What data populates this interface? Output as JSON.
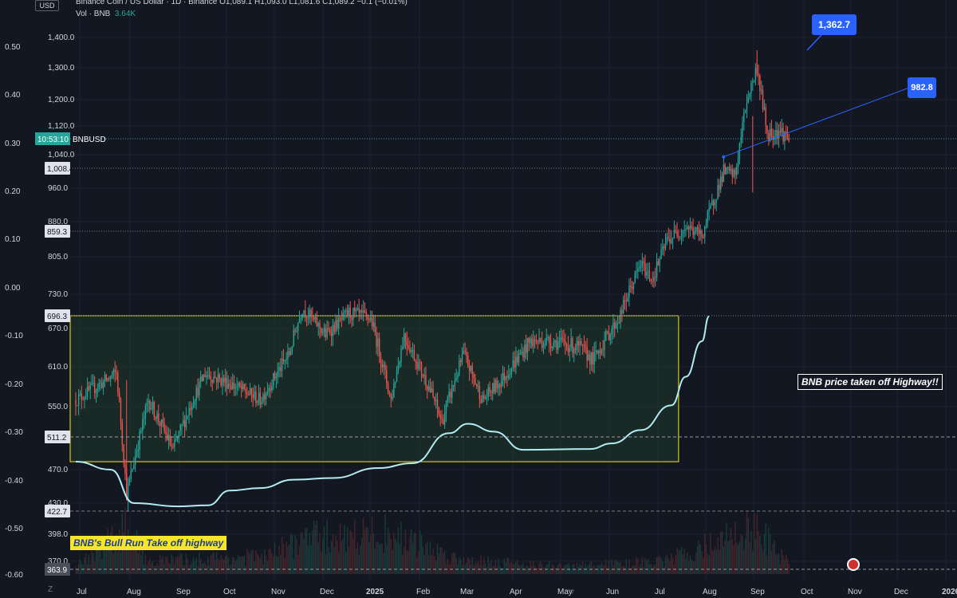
{
  "header": {
    "line1": "Binance Coin / US Dollar · 1D · Binance  O1,089.1  H1,093.0  L1,081.6  C1,089.2  −0.1 (−0.01%)",
    "vol_label": "Vol · BNB",
    "vol_value": "3.64K",
    "usd_button": "USD"
  },
  "z_button": "Z",
  "colors": {
    "background": "#131722",
    "up": "#26a69a",
    "down": "#ef5350",
    "box_fill": "#1f3a2a",
    "box_stroke": "#f7e52c",
    "ma_line": "#b2ebf2",
    "trendline": "#2962ff"
  },
  "annotations": {
    "highway_box_label": "BNB price taken off Highway!!",
    "highway_banner": "BNB's Bull Run Take off highway",
    "peak_callout": "1,362.7",
    "trend_callout": "982.8"
  },
  "chart_data": {
    "type": "candlestick",
    "symbol": "BNBUSD",
    "price_axis_ticks": [
      1400.0,
      1300.0,
      1200.0,
      1120.0,
      1040.0,
      960.0,
      880.0,
      805.0,
      730.0,
      670.0,
      610.0,
      550.0,
      470.0,
      430.0,
      398.0,
      370.0
    ],
    "price_axis_tick_labels": [
      "1,400.0",
      "1,300.0",
      "1,200.0",
      "1,120.0",
      "1,040.0",
      "960.0",
      "880.0",
      "805.0",
      "730.0",
      "670.0",
      "610.0",
      "550.0",
      "470.0",
      "430.0",
      "398.0",
      "370.0"
    ],
    "left_axis_ticks": [
      "0.50",
      "0.40",
      "0.30",
      "0.20",
      "0.10",
      "0.00",
      "-0.10",
      "-0.20",
      "-0.30",
      "-0.40",
      "-0.50",
      "-0.60"
    ],
    "x_axis_labels": [
      "Jul",
      "Aug",
      "Sep",
      "Oct",
      "Nov",
      "Dec",
      "2025",
      "Feb",
      "Mar",
      "Apr",
      "May",
      "Jun",
      "Jul",
      "Aug",
      "Sep",
      "Oct",
      "Nov",
      "Dec",
      "2026"
    ],
    "price_labels": [
      {
        "value": 1089.2,
        "text": "10:53:10",
        "tag": "BNBUSD"
      },
      {
        "value": 1008.4,
        "text": "1,008.4"
      },
      {
        "value": 859.3,
        "text": "859.3"
      },
      {
        "value": 696.3,
        "text": "696.3"
      },
      {
        "value": 511.2,
        "text": "511.2"
      },
      {
        "value": 422.7,
        "text": "422.7"
      },
      {
        "value": 363.9,
        "text": "363.9"
      }
    ],
    "range_box": {
      "top": 696.3,
      "bottom": 480.0,
      "start": "2024-07-01",
      "end": "2025-08-20",
      "label": "BNB's Bull Run Take off highway"
    },
    "peak": {
      "date": "2025-10-13",
      "value": 1362.7
    },
    "trendline": {
      "start": "2025-09-20",
      "start_value": 1035,
      "end": "2025-11-25",
      "end_value": 1195,
      "label": "982.8"
    },
    "price_keypoints": [
      [
        "2024-07-01",
        560
      ],
      [
        "2024-07-15",
        580
      ],
      [
        "2024-07-29",
        600
      ],
      [
        "2024-08-05",
        440
      ],
      [
        "2024-08-20",
        560
      ],
      [
        "2024-09-06",
        495
      ],
      [
        "2024-09-28",
        600
      ],
      [
        "2024-10-15",
        585
      ],
      [
        "2024-11-05",
        560
      ],
      [
        "2024-11-25",
        630
      ],
      [
        "2024-12-04",
        710
      ],
      [
        "2024-12-20",
        660
      ],
      [
        "2025-01-05",
        700
      ],
      [
        "2025-01-20",
        690
      ],
      [
        "2025-02-03",
        560
      ],
      [
        "2025-02-12",
        660
      ],
      [
        "2025-03-01",
        580
      ],
      [
        "2025-03-10",
        530
      ],
      [
        "2025-03-25",
        630
      ],
      [
        "2025-04-07",
        560
      ],
      [
        "2025-04-20",
        590
      ],
      [
        "2025-05-10",
        650
      ],
      [
        "2025-05-25",
        650
      ],
      [
        "2025-06-13",
        640
      ],
      [
        "2025-06-22",
        620
      ],
      [
        "2025-07-10",
        690
      ],
      [
        "2025-07-25",
        790
      ],
      [
        "2025-08-02",
        760
      ],
      [
        "2025-08-12",
        840
      ],
      [
        "2025-08-25",
        870
      ],
      [
        "2025-09-05",
        850
      ],
      [
        "2025-09-20",
        1000
      ],
      [
        "2025-09-28",
        990
      ],
      [
        "2025-10-06",
        1200
      ],
      [
        "2025-10-13",
        1300
      ],
      [
        "2025-10-20",
        1100
      ],
      [
        "2025-10-28",
        1110
      ],
      [
        "2025-11-04",
        1089
      ]
    ],
    "ma_keypoints": [
      [
        "2024-07-01",
        480
      ],
      [
        "2024-07-25",
        470
      ],
      [
        "2024-08-10",
        430
      ],
      [
        "2024-09-10",
        427
      ],
      [
        "2024-09-30",
        428
      ],
      [
        "2024-10-15",
        445
      ],
      [
        "2024-11-05",
        448
      ],
      [
        "2024-11-28",
        458
      ],
      [
        "2024-12-25",
        460
      ],
      [
        "2025-01-25",
        472
      ],
      [
        "2025-02-18",
        478
      ],
      [
        "2025-03-15",
        516
      ],
      [
        "2025-03-28",
        528
      ],
      [
        "2025-04-15",
        518
      ],
      [
        "2025-05-05",
        495
      ],
      [
        "2025-06-20",
        496
      ],
      [
        "2025-07-05",
        503
      ],
      [
        "2025-07-25",
        520
      ],
      [
        "2025-08-15",
        552
      ],
      [
        "2025-08-25",
        595
      ],
      [
        "2025-09-05",
        650
      ],
      [
        "2025-09-10",
        695
      ]
    ],
    "volume_keypoints": [
      [
        "2024-07-01",
        0.15
      ],
      [
        "2024-08-05",
        0.9
      ],
      [
        "2024-08-20",
        0.25
      ],
      [
        "2024-11-10",
        0.35
      ],
      [
        "2024-12-05",
        0.7
      ],
      [
        "2025-02-03",
        0.8
      ],
      [
        "2025-03-20",
        0.3
      ],
      [
        "2025-06-01",
        0.15
      ],
      [
        "2025-08-10",
        0.25
      ],
      [
        "2025-10-11",
        0.9
      ],
      [
        "2025-11-04",
        0.2
      ]
    ]
  }
}
